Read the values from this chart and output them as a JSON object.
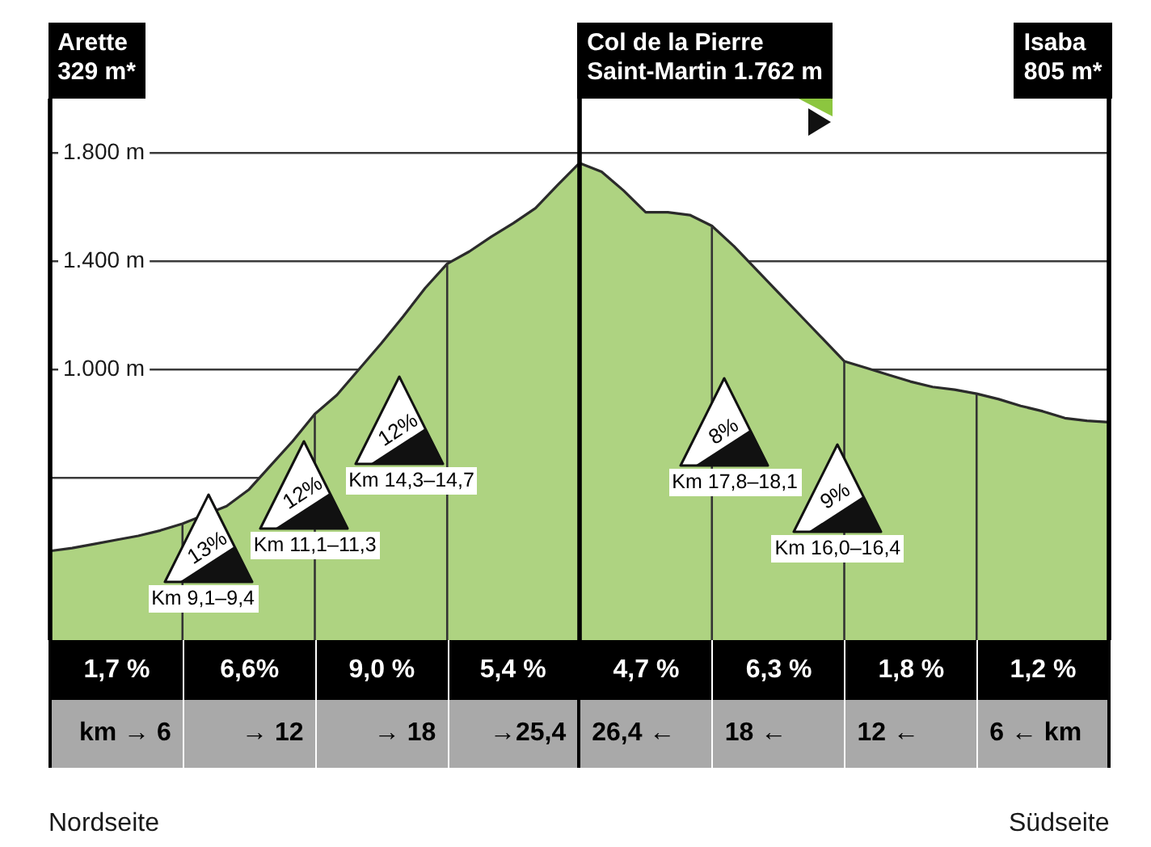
{
  "chart_data": {
    "type": "area",
    "categories": [
      null,
      null,
      null,
      null,
      null,
      null,
      null,
      null,
      null,
      null,
      null,
      null,
      null,
      null,
      null,
      null,
      null,
      null,
      null,
      null,
      null,
      null,
      null,
      null,
      null,
      null,
      null,
      null,
      null,
      null,
      null,
      null,
      null,
      null,
      null,
      null,
      null,
      null,
      null,
      null,
      null,
      null,
      null,
      null,
      null,
      null,
      null,
      null,
      null
    ],
    "values": [
      329,
      340,
      355,
      370,
      385,
      405,
      430,
      null,
      495,
      555,
      645,
      735,
      835,
      905,
      1000,
      1095,
      1195,
      1300,
      1390,
      1435,
      1490,
      1540,
      1595,
      1680,
      1762,
      1730,
      1660,
      1580,
      1580,
      1570,
      1530,
      1455,
      1370,
      1285,
      1200,
      1115,
      1030,
      1005,
      980,
      955,
      935,
      925,
      910,
      890,
      865,
      845,
      820,
      810,
      805
    ],
    "color": "#aed381",
    "ylim": [
      0,
      2000
    ],
    "yticks": [
      {
        "value": 600,
        "label": null
      },
      {
        "value": 1000,
        "label": "1.000 m"
      },
      {
        "value": 1400,
        "label": "1.400 m"
      },
      {
        "value": 1800,
        "label": "1.800 m"
      }
    ],
    "grid": true,
    "tick_labels": "y",
    "annotations": [
      "Arette\n329 m*",
      "Col de la Pierre\nSaint-Martin 1.762 m",
      "Isaba\n805 m*",
      "13%",
      "Km 9,1–9,4",
      "12%",
      "Km 11,1–11,3",
      "12%",
      "Km 14,3–14,7",
      "8%",
      "Km 17,8–18,1",
      "9%",
      "Km 16,0–16,4",
      "1,7 %",
      "6,6%",
      "9,0 %",
      "5,4 %",
      "4,7 %",
      "6,3 %",
      "1,8 %",
      "1,2 %",
      "km → 6",
      "→ 12",
      "→ 18",
      "→25,4",
      "26,4 ←",
      "18 ←",
      "12 ←",
      "6 ← km",
      "Nordseite",
      "Südseite"
    ]
  }
}
